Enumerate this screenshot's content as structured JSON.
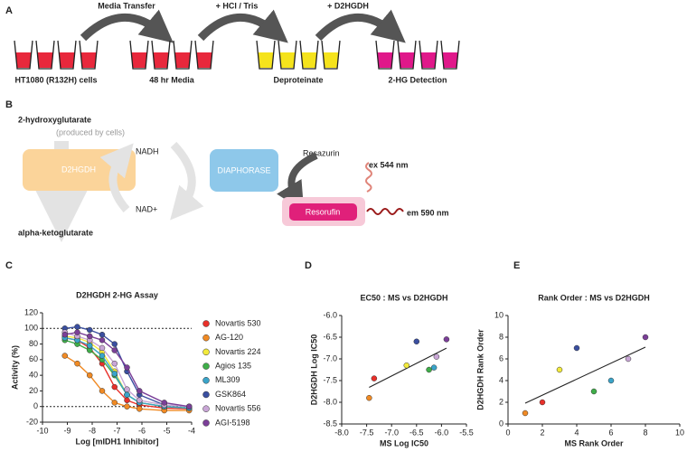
{
  "panel_labels": [
    "A",
    "B",
    "C",
    "D",
    "E"
  ],
  "panel_a": {
    "steps": [
      "Media Transfer",
      "+ HCl / Tris",
      "+ D2HGDH"
    ],
    "stages": [
      "HT1080 (R132H) cells",
      "48 hr Media",
      "Deproteinate",
      "2-HG Detection"
    ]
  },
  "panel_b": {
    "substrate": "2-hydroxyglutarate",
    "substrate_note": "(produced by cells)",
    "enzyme": "D2HGDH",
    "product": "alpha-ketoglutarate",
    "cofactor_reduced": "NADH",
    "cofactor_oxidized": "NAD+",
    "enzyme2": "DIAPHORASE",
    "dye": "Resazurin",
    "dye_product": "Resorufin",
    "excitation": "ex 544 nm",
    "emission": "em 590 nm"
  },
  "chart_data": [
    {
      "type": "line",
      "title": "D2HGDH 2-HG Assay",
      "x_label": "Log [mIDH1 Inhibitor]",
      "y_label": "Activity (%)",
      "x": [
        -9.1,
        -8.6,
        -8.1,
        -7.6,
        -7.1,
        -6.6,
        -6.1,
        -5.1,
        -4.1
      ],
      "series": [
        {
          "name": "Novartis 530",
          "color": "#e8302a",
          "values": [
            88,
            85,
            75,
            55,
            25,
            8,
            2,
            -2,
            -3
          ]
        },
        {
          "name": "AG-120",
          "color": "#f08a24",
          "values": [
            65,
            55,
            40,
            20,
            5,
            0,
            -3,
            -5,
            -5
          ]
        },
        {
          "name": "Novartis 224",
          "color": "#f2ea3c",
          "values": [
            90,
            88,
            82,
            70,
            45,
            15,
            5,
            0,
            -2
          ]
        },
        {
          "name": "Agios 135",
          "color": "#3fae49",
          "values": [
            85,
            80,
            72,
            60,
            40,
            15,
            5,
            0,
            -2
          ]
        },
        {
          "name": "ML309",
          "color": "#3aa4c9",
          "values": [
            88,
            85,
            78,
            65,
            42,
            15,
            5,
            0,
            -2
          ]
        },
        {
          "name": "GSK864",
          "color": "#3a4fa0",
          "values": [
            100,
            102,
            98,
            92,
            80,
            45,
            15,
            2,
            0
          ]
        },
        {
          "name": "Novartis 556",
          "color": "#c9a6d6",
          "values": [
            95,
            90,
            85,
            75,
            55,
            22,
            8,
            2,
            0
          ]
        },
        {
          "name": "AGI-5198",
          "color": "#7b3f98",
          "values": [
            92,
            95,
            90,
            85,
            72,
            50,
            20,
            5,
            0
          ]
        }
      ],
      "xlim": [
        -10,
        -4
      ],
      "xticks": [
        -10,
        -9,
        -8,
        -7,
        -6,
        -5,
        -4
      ],
      "ylim": [
        -20,
        120
      ],
      "yticks": [
        -20,
        0,
        20,
        40,
        60,
        80,
        100,
        120
      ],
      "reference_lines": [
        0,
        100
      ],
      "legend": "right"
    },
    {
      "type": "scatter",
      "title": "EC50 : MS vs D2HGDH",
      "x_label": "MS Log IC50",
      "y_label": "D2HGDH  Log  IC50",
      "x": [
        -7.45,
        -7.35,
        -6.7,
        -6.5,
        -6.25,
        -6.15,
        -6.1,
        -5.9
      ],
      "y": [
        -7.9,
        -7.45,
        -7.15,
        -6.6,
        -7.25,
        -7.2,
        -6.95,
        -6.55
      ],
      "colors": [
        "#f08a24",
        "#e8302a",
        "#f2ea3c",
        "#3a4fa0",
        "#3fae49",
        "#3aa4c9",
        "#c9a6d6",
        "#7b3f98"
      ],
      "xlim": [
        -8,
        -5.5
      ],
      "xticks": [
        {
          "value": -8,
          "label": "-8.0"
        },
        {
          "value": -7.5,
          "label": "-7.5"
        },
        {
          "value": -7,
          "label": "-7.0"
        },
        {
          "value": -6.5,
          "label": "-6.5"
        },
        {
          "value": -6,
          "label": "-6.0"
        },
        {
          "value": -5.5,
          "label": "-5.5"
        }
      ],
      "ylim": [
        -8.5,
        -6
      ],
      "yticks": [
        {
          "value": -8.5,
          "label": "-8.5"
        },
        {
          "value": -8,
          "label": "-8.0"
        },
        {
          "value": -7.5,
          "label": "-7.5"
        },
        {
          "value": -7,
          "label": "-7.0"
        },
        {
          "value": -6.5,
          "label": "-6.5"
        },
        {
          "value": -6,
          "label": "-6.0"
        }
      ],
      "trendline": true
    },
    {
      "type": "scatter",
      "title": "Rank Order : MS vs D2HGDH",
      "x_label": "MS Rank Order",
      "y_label": "D2HGDH  Rank  Order",
      "x": [
        1,
        2,
        3,
        4,
        5,
        6,
        7,
        8
      ],
      "y": [
        1,
        2,
        5,
        7,
        3,
        4,
        6,
        8
      ],
      "colors": [
        "#f08a24",
        "#e8302a",
        "#f2ea3c",
        "#3a4fa0",
        "#3fae49",
        "#3aa4c9",
        "#c9a6d6",
        "#7b3f98"
      ],
      "xlim": [
        0,
        10
      ],
      "xticks": [
        0,
        2,
        4,
        6,
        8,
        10
      ],
      "ylim": [
        0,
        10
      ],
      "yticks": [
        0,
        2,
        4,
        6,
        8,
        10
      ],
      "trendline": true
    }
  ]
}
